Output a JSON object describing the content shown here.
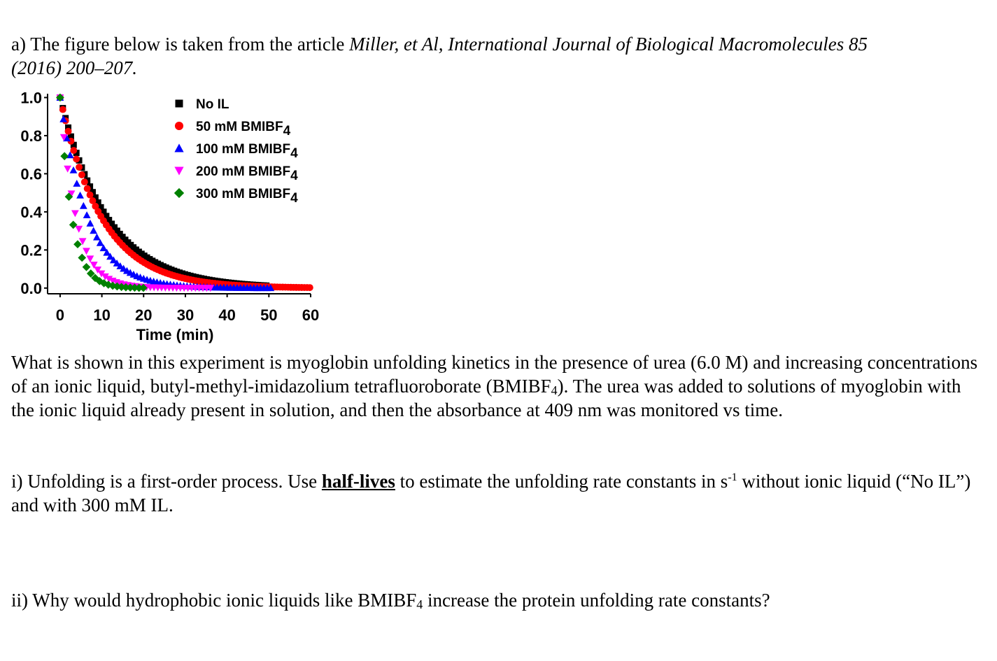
{
  "intro": {
    "prefix": "a) The figure below is taken from the article ",
    "citation_line1": "Miller, et Al, International Journal of Biological Macromolecules 85",
    "citation_line2": "(2016) 200–207."
  },
  "chart_data": {
    "type": "scatter",
    "title": "",
    "xlabel": "Time (min)",
    "ylabel": "",
    "xlim": [
      -3,
      60
    ],
    "ylim": [
      -0.03,
      1.02
    ],
    "xticks": [
      "0",
      "10",
      "20",
      "30",
      "40",
      "50",
      "60"
    ],
    "yticks": [
      "0.0",
      "0.2",
      "0.4",
      "0.6",
      "0.8",
      "1.0"
    ],
    "grid": false,
    "legend_position": "top-center",
    "series": [
      {
        "name": "No IL",
        "sub": "",
        "marker": "square",
        "color": "#000000",
        "k_per_min": 0.088,
        "t_max": 50,
        "dt": 0.65
      },
      {
        "name": "50 mM BMIBF",
        "sub": "4",
        "marker": "circle",
        "color": "#ff0000",
        "k_per_min": 0.1,
        "t_max": 60,
        "dt": 0.65
      },
      {
        "name": "100 mM BMIBF",
        "sub": "4",
        "marker": "triangle-up",
        "color": "#0000ff",
        "k_per_min": 0.15,
        "t_max": 51,
        "dt": 0.8
      },
      {
        "name": "200 mM BMIBF",
        "sub": "4",
        "marker": "triangle-down",
        "color": "#ff00ff",
        "k_per_min": 0.26,
        "t_max": 36,
        "dt": 0.9
      },
      {
        "name": "300 mM BMIBF",
        "sub": "4",
        "marker": "diamond",
        "color": "#008000",
        "k_per_min": 0.35,
        "t_max": 20,
        "dt": 1.05
      }
    ]
  },
  "description": {
    "text_before": "What is shown in this experiment is myoglobin unfolding kinetics in the presence of urea (6.0 M) and increasing concentrations of an ionic liquid, butyl-methyl-imidazolium tetrafluoroborate (BMIBF",
    "sub": "4",
    "text_after": "). The urea was added to solutions of myoglobin with the ionic liquid already present in solution, and then the absorbance at 409 nm was monitored vs time."
  },
  "question1": {
    "prefix": "i) Unfolding is a first-order process. Use ",
    "emphasis": "half-lives",
    "middle": " to estimate the unfolding rate constants in s",
    "sup": "-1",
    "suffix": " without ionic liquid (“No IL”) and with 300 mM IL."
  },
  "question2": {
    "prefix": "ii) Why would hydrophobic ionic liquids like BMIBF",
    "sub": "4",
    "suffix": " increase the protein unfolding rate constants?"
  }
}
